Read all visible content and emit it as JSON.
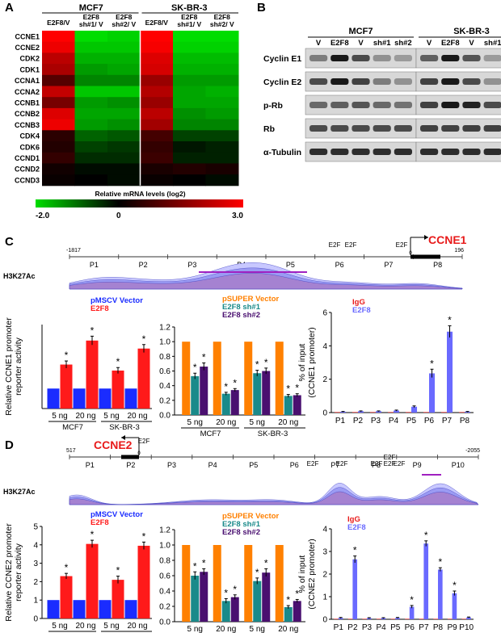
{
  "panels": {
    "A": {
      "letter": "A",
      "groups": [
        "MCF7",
        "SK-BR-3"
      ],
      "columns": [
        [
          "E2F8/V"
        ],
        [
          "E2F8",
          "sh#1/ V"
        ],
        [
          "E2F8",
          "sh#2/ V"
        ],
        [
          "E2F8/V"
        ],
        [
          "E2F8",
          "sh#1/ V"
        ],
        [
          "E2F8",
          "sh#2/ V"
        ]
      ],
      "rows": [
        "CCNE1",
        "CCNE2",
        "CDK2",
        "CDK1",
        "CCNA1",
        "CCNA2",
        "CCNB1",
        "CCNB2",
        "CCNB3",
        "CDK4",
        "CDK6",
        "CCND1",
        "CCND2",
        "CCND3"
      ],
      "values": [
        [
          3.0,
          -2.0,
          -1.9,
          3.0,
          -2.0,
          -2.0
        ],
        [
          2.8,
          -1.8,
          -1.8,
          2.9,
          -1.9,
          -1.9
        ],
        [
          2.2,
          -1.6,
          -1.6,
          2.6,
          -1.7,
          -1.7
        ],
        [
          2.0,
          -1.4,
          -1.5,
          2.5,
          -1.6,
          -1.6
        ],
        [
          1.0,
          -1.2,
          -1.2,
          1.8,
          -1.4,
          -1.4
        ],
        [
          2.3,
          -1.8,
          -1.8,
          2.1,
          -1.5,
          -1.6
        ],
        [
          1.4,
          -1.4,
          -1.3,
          1.8,
          -1.5,
          -1.5
        ],
        [
          2.6,
          -1.5,
          -1.5,
          2.2,
          -1.3,
          -1.4
        ],
        [
          2.8,
          -1.4,
          -1.3,
          1.9,
          -1.2,
          -1.2
        ],
        [
          0.5,
          -0.9,
          -0.8,
          0.8,
          -0.6,
          -0.6
        ],
        [
          0.4,
          -0.6,
          -0.5,
          0.6,
          -0.2,
          -0.3
        ],
        [
          0.6,
          -0.4,
          -0.4,
          0.7,
          -0.3,
          -0.3
        ],
        [
          0.2,
          -0.1,
          -0.1,
          0.3,
          0.4,
          0.3
        ],
        [
          0.1,
          0.0,
          -0.1,
          0.1,
          0.0,
          -0.1
        ]
      ],
      "scale_title": "Relative mRNA levels (log2)",
      "scale_ticks": [
        "-2.0",
        "0",
        "3.0"
      ],
      "colors": {
        "low": "#00dd00",
        "mid": "#000000",
        "high": "#ff0000"
      }
    },
    "B": {
      "letter": "B",
      "groups": [
        "MCF7",
        "SK-BR-3"
      ],
      "lanes": [
        "V",
        "E2F8",
        "V",
        "sh#1",
        "sh#2",
        "V",
        "E2F8",
        "V",
        "sh#1",
        "sh#2"
      ],
      "blots": [
        {
          "label": "Cyclin E1",
          "intensity": [
            0.45,
            0.95,
            0.7,
            0.35,
            0.3,
            0.6,
            0.95,
            0.65,
            0.3,
            0.25
          ]
        },
        {
          "label": "Cyclin E2",
          "intensity": [
            0.7,
            0.95,
            0.75,
            0.45,
            0.35,
            0.75,
            0.95,
            0.7,
            0.35,
            0.3
          ]
        },
        {
          "label": "p-Rb",
          "intensity": [
            0.55,
            0.6,
            0.65,
            0.55,
            0.5,
            0.75,
            0.95,
            0.9,
            0.7,
            0.65
          ]
        },
        {
          "label": "Rb",
          "intensity": [
            0.7,
            0.7,
            0.7,
            0.7,
            0.7,
            0.75,
            0.75,
            0.75,
            0.75,
            0.75
          ]
        },
        {
          "label": "α-Tubulin",
          "intensity": [
            0.85,
            0.85,
            0.85,
            0.85,
            0.85,
            0.85,
            0.85,
            0.85,
            0.85,
            0.85
          ]
        }
      ]
    },
    "C": {
      "letter": "C",
      "gene": "CCNE1",
      "track_label": "H3K27Ac",
      "coord_left": "-1817",
      "coord_right": "196",
      "coord_zero": "0",
      "e2f_label": "E2F",
      "regions": [
        "P1",
        "P2",
        "P3",
        "P4",
        "P5",
        "P6",
        "P7",
        "P8"
      ],
      "e2f_count": 3
    },
    "D": {
      "letter": "D",
      "gene": "CCNE2",
      "track_label": "H3K27Ac",
      "coord_left": "517",
      "coord_right": "-2055",
      "coord_zero": "0",
      "e2f_label": "E2F",
      "regions": [
        "P1",
        "P2",
        "P3",
        "P4",
        "P5",
        "P6",
        "P7",
        "P8",
        "P9",
        "P10"
      ],
      "e2f_count": 6
    }
  },
  "chart_data": [
    {
      "id": "C1",
      "type": "bar",
      "ylabel": [
        "Relative CCNE1 promoter",
        "reporter activity"
      ],
      "legend": [
        "pMSCV Vector",
        "E2F8"
      ],
      "series_colors": [
        "#1a2cff",
        "#ff1a1a"
      ],
      "x_labels": [
        "5 ng",
        "20 ng",
        "5 ng",
        "20 ng"
      ],
      "group_labels": [
        "MCF7",
        "SK-BR-3"
      ],
      "series": [
        {
          "name": "pMSCV Vector",
          "values": [
            1.0,
            1.0,
            1.0,
            1.0
          ],
          "errors": [
            0,
            0,
            0,
            0
          ],
          "sig": [
            false,
            false,
            false,
            false
          ]
        },
        {
          "name": "E2F8",
          "values": [
            2.2,
            3.4,
            1.9,
            3.0
          ],
          "errors": [
            0.18,
            0.22,
            0.15,
            0.2
          ],
          "sig": [
            true,
            true,
            true,
            true
          ]
        }
      ],
      "ylim": [
        0,
        4.2
      ],
      "yticks": []
    },
    {
      "id": "C2",
      "type": "bar",
      "legend": [
        "pSUPER Vector",
        "E2F8 sh#1",
        "E2F8 sh#2"
      ],
      "series_colors": [
        "#ff8000",
        "#1a8a8a",
        "#4a1070"
      ],
      "x_labels": [
        "5 ng",
        "20 ng",
        "5 ng",
        "20 ng"
      ],
      "group_labels": [
        "MCF7",
        "SK-BR-3"
      ],
      "series": [
        {
          "name": "pSUPER Vector",
          "values": [
            1.0,
            1.0,
            1.0,
            1.0
          ],
          "errors": [
            0,
            0,
            0,
            0
          ],
          "sig": [
            false,
            false,
            false,
            false
          ]
        },
        {
          "name": "E2F8 sh#1",
          "values": [
            0.53,
            0.29,
            0.57,
            0.26
          ],
          "errors": [
            0.04,
            0.02,
            0.04,
            0.02
          ],
          "sig": [
            true,
            true,
            true,
            true
          ]
        },
        {
          "name": "E2F8 sh#2",
          "values": [
            0.66,
            0.34,
            0.6,
            0.27
          ],
          "errors": [
            0.05,
            0.02,
            0.04,
            0.02
          ],
          "sig": [
            true,
            true,
            true,
            true
          ]
        }
      ],
      "ylim": [
        0,
        1.2
      ],
      "yticks": [
        "0.0",
        "0.2",
        "0.4",
        "0.6",
        "0.8",
        "1.0",
        "1.2"
      ]
    },
    {
      "id": "C3",
      "type": "bar",
      "ylabel": [
        "% of input",
        "(CCNE1 promoter)"
      ],
      "legend": [
        "IgG",
        "E2F8"
      ],
      "series_colors": [
        "#e81a1a",
        "#6a6aff"
      ],
      "x_labels": [
        "P1",
        "P2",
        "P3",
        "P4",
        "P5",
        "P6",
        "P7",
        "P8"
      ],
      "series": [
        {
          "name": "IgG",
          "values": [
            0.03,
            0.03,
            0.03,
            0.03,
            0.03,
            0.03,
            0.03,
            0.03
          ],
          "errors": [
            0,
            0,
            0,
            0,
            0,
            0,
            0,
            0
          ],
          "sig": [
            false,
            false,
            false,
            false,
            false,
            false,
            false,
            false
          ]
        },
        {
          "name": "E2F8",
          "values": [
            0.05,
            0.08,
            0.08,
            0.12,
            0.35,
            2.35,
            4.85,
            0.05
          ],
          "errors": [
            0.02,
            0.02,
            0.02,
            0.03,
            0.05,
            0.25,
            0.35,
            0.02
          ],
          "sig": [
            false,
            false,
            false,
            false,
            false,
            true,
            true,
            false
          ]
        }
      ],
      "ylim": [
        0,
        6
      ],
      "yticks": [
        "0",
        "2",
        "4",
        "6"
      ]
    },
    {
      "id": "D1",
      "type": "bar",
      "ylabel": [
        "Relative CCNE2 promoter",
        "reporter activity"
      ],
      "legend": [
        "pMSCV Vector",
        "E2F8"
      ],
      "series_colors": [
        "#1a2cff",
        "#ff1a1a"
      ],
      "x_labels": [
        "5 ng",
        "20 ng",
        "5 ng",
        "20 ng"
      ],
      "group_labels": [
        "MCF7",
        "SK-BR-3"
      ],
      "series": [
        {
          "name": "pMSCV Vector",
          "values": [
            1.0,
            1.0,
            1.0,
            1.0
          ],
          "errors": [
            0,
            0,
            0,
            0
          ],
          "sig": [
            false,
            false,
            false,
            false
          ]
        },
        {
          "name": "E2F8",
          "values": [
            2.3,
            4.05,
            2.1,
            3.95
          ],
          "errors": [
            0.15,
            0.2,
            0.2,
            0.2
          ],
          "sig": [
            true,
            true,
            true,
            true
          ]
        }
      ],
      "ylim": [
        0,
        5
      ],
      "yticks": [
        "0",
        "1",
        "2",
        "3",
        "4",
        "5"
      ]
    },
    {
      "id": "D2",
      "type": "bar",
      "legend": [
        "pSUPER Vector",
        "E2F8 sh#1",
        "E2F8 sh#2"
      ],
      "series_colors": [
        "#ff8000",
        "#1a8a8a",
        "#4a1070"
      ],
      "x_labels": [
        "5 ng",
        "20 ng",
        "5 ng",
        "20 ng"
      ],
      "group_labels": [
        "MCF7",
        "SK-BR-3"
      ],
      "series": [
        {
          "name": "pSUPER Vector",
          "values": [
            1.0,
            1.0,
            1.0,
            1.0
          ],
          "errors": [
            0,
            0,
            0,
            0
          ],
          "sig": [
            false,
            false,
            false,
            false
          ]
        },
        {
          "name": "E2F8 sh#1",
          "values": [
            0.6,
            0.27,
            0.53,
            0.19
          ],
          "errors": [
            0.05,
            0.03,
            0.04,
            0.02
          ],
          "sig": [
            true,
            true,
            true,
            true
          ]
        },
        {
          "name": "E2F8 sh#2",
          "values": [
            0.65,
            0.32,
            0.64,
            0.27
          ],
          "errors": [
            0.04,
            0.03,
            0.05,
            0.02
          ],
          "sig": [
            true,
            true,
            true,
            true
          ]
        }
      ],
      "ylim": [
        0,
        1.2
      ],
      "yticks": [
        "0.0",
        "0.2",
        "0.4",
        "0.6",
        "0.8",
        "1.0",
        "1.2"
      ]
    },
    {
      "id": "D3",
      "type": "bar",
      "ylabel": [
        "% of input",
        "(CCNE2 promoter)"
      ],
      "legend": [
        "IgG",
        "E2F8"
      ],
      "series_colors": [
        "#e81a1a",
        "#6a6aff"
      ],
      "x_labels": [
        "P1",
        "P2",
        "P3",
        "P4",
        "P5",
        "P6",
        "P7",
        "P8",
        "P9",
        "P10"
      ],
      "series": [
        {
          "name": "IgG",
          "values": [
            0.02,
            0.02,
            0.02,
            0.02,
            0.02,
            0.02,
            0.02,
            0.02,
            0.02,
            0.02
          ],
          "errors": [
            0,
            0,
            0,
            0,
            0,
            0,
            0,
            0,
            0,
            0
          ],
          "sig": [
            false,
            false,
            false,
            false,
            false,
            false,
            false,
            false,
            false,
            false
          ]
        },
        {
          "name": "E2F8",
          "values": [
            0.06,
            2.65,
            0.05,
            0.05,
            0.06,
            0.55,
            3.35,
            2.2,
            1.15,
            0.08
          ],
          "errors": [
            0.02,
            0.15,
            0.02,
            0.02,
            0.02,
            0.06,
            0.12,
            0.08,
            0.1,
            0.02
          ],
          "sig": [
            false,
            true,
            false,
            false,
            false,
            true,
            true,
            true,
            true,
            false
          ]
        }
      ],
      "ylim": [
        0,
        4
      ],
      "yticks": [
        "0",
        "1",
        "2",
        "3",
        "4"
      ]
    }
  ]
}
